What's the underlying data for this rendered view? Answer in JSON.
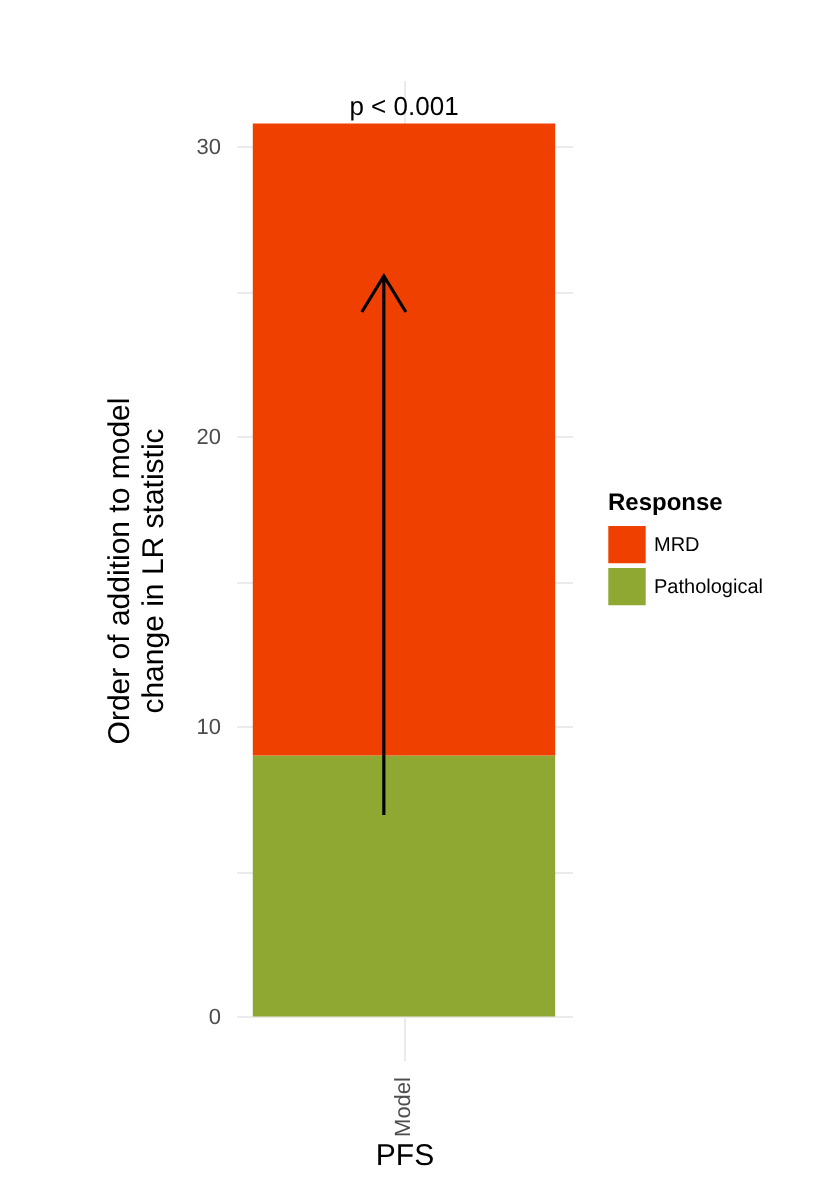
{
  "chart_data": {
    "type": "bar",
    "categories": [
      "Model"
    ],
    "xlabel": "PFS",
    "ylabel": "Order of addition to model\nchange in LR statistic",
    "legend_title": "Response",
    "stacked": true,
    "series": [
      {
        "name": "Pathological",
        "color": "#8ea832",
        "values": [
          9.0
        ]
      },
      {
        "name": "MRD",
        "color": "#f04000",
        "values": [
          21.8
        ]
      }
    ],
    "ylim": [
      -1.5,
      32.3
    ],
    "yticks": [
      0,
      {
        "value": 5,
        "label": null
      },
      10,
      {
        "value": 15,
        "label": null
      },
      20,
      {
        "value": 25,
        "label": null
      },
      30
    ],
    "grid": true,
    "legend": "right",
    "annotations": [
      {
        "text": "p < 0.001",
        "x": "Model",
        "y": 30.8
      }
    ]
  }
}
